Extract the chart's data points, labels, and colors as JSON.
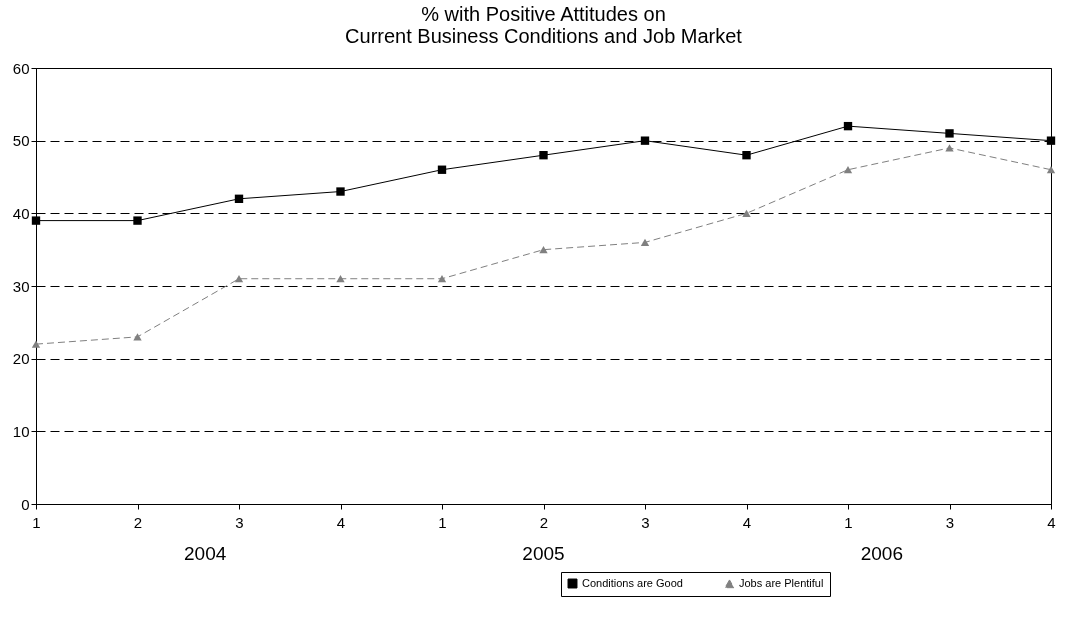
{
  "chart_data": {
    "type": "line",
    "title": "% with Positive Attitudes on\nCurrent Business Conditions and Job Market",
    "categories": [
      "1",
      "2",
      "3",
      "4",
      "1",
      "2",
      "3",
      "4",
      "1",
      "3",
      "4"
    ],
    "series": [
      {
        "name": "Conditions are Good",
        "color": "#000000",
        "marker": "square",
        "line_style": "solid",
        "values": [
          39,
          39,
          42,
          43,
          46,
          48,
          50,
          48,
          52,
          51,
          50
        ]
      },
      {
        "name": "Jobs are Plentiful",
        "color": "#808080",
        "marker": "triangle",
        "line_style": "dashed",
        "values": [
          22,
          23,
          31,
          31,
          31,
          35,
          36,
          40,
          46,
          49,
          46
        ]
      }
    ],
    "ylim": [
      0,
      60
    ],
    "yticks": [
      0,
      10,
      20,
      30,
      40,
      50,
      60
    ],
    "grid": "y",
    "legend": "bottom right",
    "annotations": [
      "2004",
      "2005",
      "2006"
    ]
  }
}
